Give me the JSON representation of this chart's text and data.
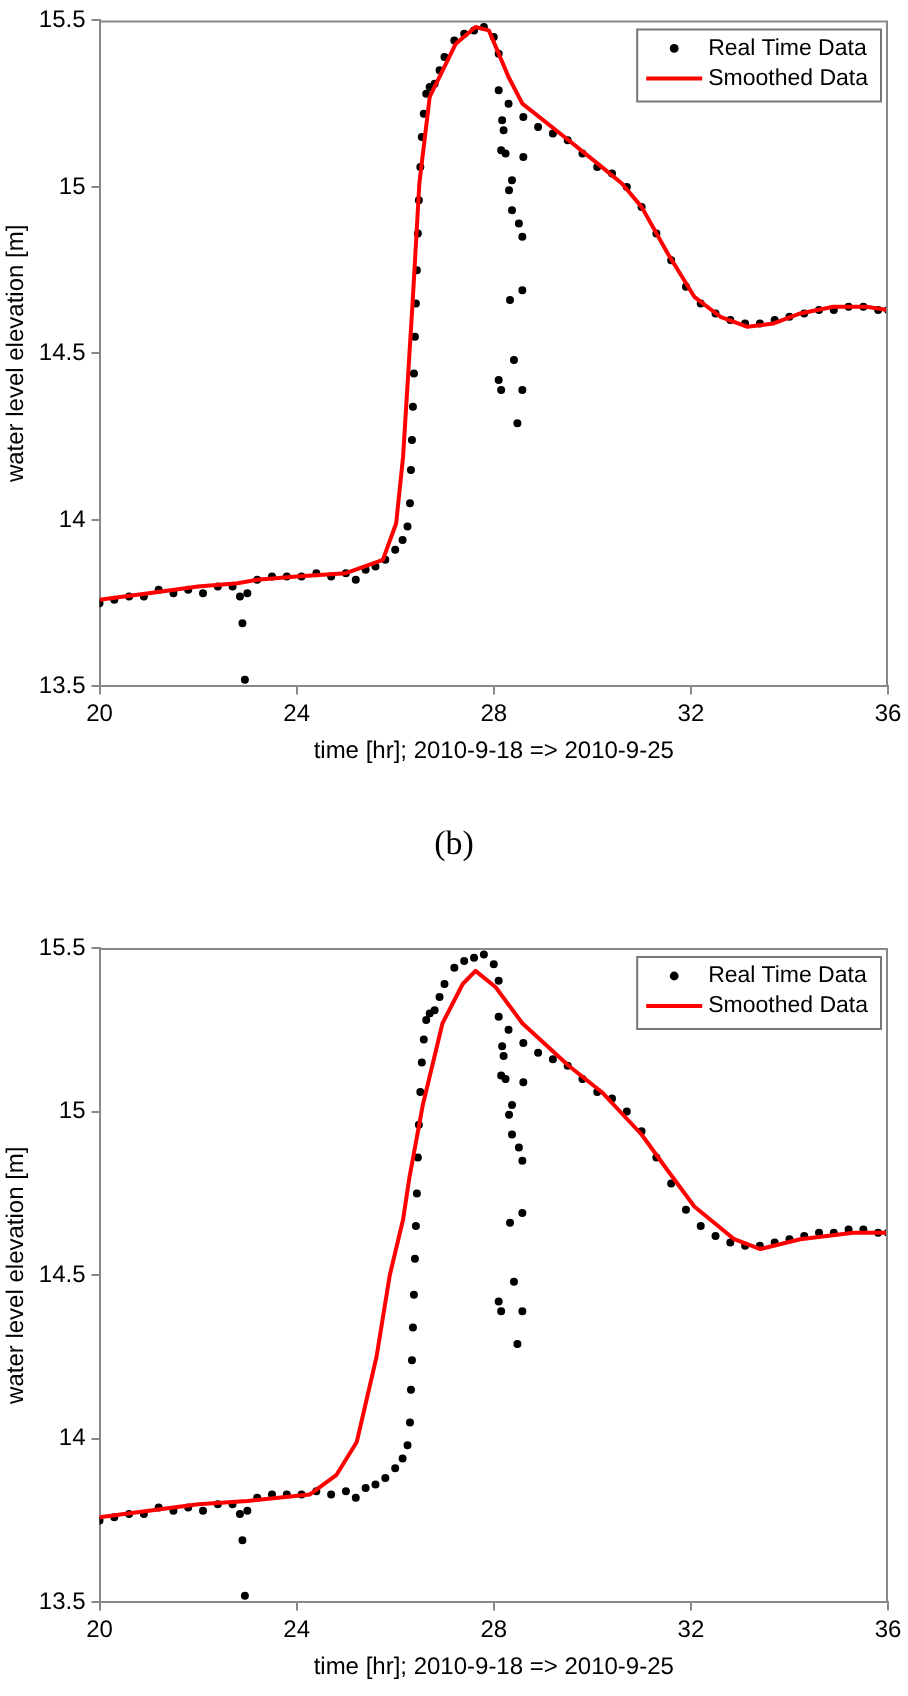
{
  "chart_data": [
    {
      "type": "scatter",
      "xlabel": "time [hr]; 2010-9-18 => 2010-9-25",
      "ylabel": "water level elevation [m]",
      "annotations": [
        "(b)"
      ],
      "xlim": [
        20,
        36
      ],
      "xticks": [
        20,
        24,
        28,
        32,
        36
      ],
      "ylim": [
        13.5,
        15.5
      ],
      "yticks": [
        13.5,
        14,
        14.5,
        15,
        15.5
      ],
      "grid": false,
      "legend": "top right",
      "series": [
        {
          "name": "Real Time Data",
          "type": "scatter",
          "marker": "circle",
          "color": "#000000",
          "x": [
            20.0,
            20.3,
            20.6,
            20.9,
            21.2,
            21.5,
            21.8,
            22.1,
            22.4,
            22.7,
            22.85,
            22.9,
            22.95,
            23.0,
            23.2,
            23.5,
            23.8,
            24.1,
            24.4,
            24.7,
            25.0,
            25.2,
            25.4,
            25.6,
            25.8,
            26.0,
            26.15,
            26.25,
            26.3,
            26.32,
            26.34,
            26.36,
            26.38,
            26.4,
            26.42,
            26.44,
            26.46,
            26.48,
            26.51,
            26.54,
            26.58,
            26.63,
            26.7,
            26.8,
            26.9,
            27.0,
            27.2,
            27.4,
            27.6,
            27.8,
            28.0,
            28.1,
            28.1,
            28.17,
            28.2,
            28.15,
            28.24,
            28.37,
            28.31,
            28.37,
            28.51,
            28.58,
            28.6,
            28.33,
            28.58,
            28.41,
            28.1,
            28.15,
            28.58,
            28.48,
            28.3,
            28.6,
            28.9,
            29.2,
            29.5,
            29.8,
            30.1,
            30.4,
            30.7,
            31.0,
            31.3,
            31.6,
            31.9,
            32.2,
            32.5,
            32.8,
            33.1,
            33.4,
            33.7,
            34.0,
            34.3,
            34.6,
            34.9,
            35.2,
            35.5,
            35.8,
            36.0
          ],
          "values": [
            13.75,
            13.76,
            13.77,
            13.77,
            13.79,
            13.78,
            13.79,
            13.78,
            13.8,
            13.8,
            13.77,
            13.69,
            13.52,
            13.78,
            13.82,
            13.83,
            13.83,
            13.83,
            13.84,
            13.83,
            13.84,
            13.82,
            13.85,
            13.86,
            13.88,
            13.91,
            13.94,
            13.98,
            14.05,
            14.15,
            14.24,
            14.34,
            14.44,
            14.55,
            14.65,
            14.75,
            14.86,
            14.96,
            15.06,
            15.15,
            15.22,
            15.28,
            15.3,
            15.31,
            15.35,
            15.39,
            15.44,
            15.46,
            15.47,
            15.48,
            15.45,
            15.4,
            15.29,
            15.2,
            15.17,
            15.11,
            15.1,
            15.02,
            14.99,
            14.93,
            14.89,
            14.85,
            15.09,
            14.66,
            14.69,
            14.48,
            14.42,
            14.39,
            14.39,
            14.29,
            15.25,
            15.21,
            15.18,
            15.16,
            15.14,
            15.1,
            15.06,
            15.04,
            15.0,
            14.94,
            14.86,
            14.78,
            14.7,
            14.65,
            14.62,
            14.6,
            14.59,
            14.59,
            14.6,
            14.61,
            14.62,
            14.63,
            14.63,
            14.64,
            14.64,
            14.63,
            14.63
          ]
        },
        {
          "name": "Smoothed Data",
          "type": "line",
          "marker": "none",
          "line_style": "solid",
          "color": "#ff0000",
          "x": [
            20,
            21,
            22,
            22.8,
            23.2,
            24,
            25,
            25.75,
            26.02,
            26.16,
            26.36,
            26.49,
            26.7,
            27.23,
            27.63,
            27.9,
            28.3,
            28.58,
            29.52,
            30.19,
            30.6,
            31.0,
            31.53,
            32.07,
            32.6,
            33.15,
            33.68,
            34.22,
            34.89,
            35.56,
            36
          ],
          "values": [
            13.76,
            13.78,
            13.8,
            13.81,
            13.82,
            13.83,
            13.84,
            13.88,
            13.99,
            14.19,
            14.67,
            15.01,
            15.27,
            15.43,
            15.48,
            15.47,
            15.33,
            15.25,
            15.14,
            15.06,
            15.01,
            14.94,
            14.8,
            14.67,
            14.61,
            14.58,
            14.59,
            14.62,
            14.64,
            14.64,
            14.63
          ]
        }
      ]
    },
    {
      "type": "scatter",
      "xlabel": "time [hr]; 2010-9-18 => 2010-9-25",
      "ylabel": "water level elevation [m]",
      "xlim": [
        20,
        36
      ],
      "xticks": [
        20,
        24,
        28,
        32,
        36
      ],
      "ylim": [
        13.5,
        15.5
      ],
      "yticks": [
        13.5,
        14,
        14.5,
        15,
        15.5
      ],
      "grid": false,
      "legend": "top right",
      "series": [
        {
          "name": "Real Time Data",
          "type": "scatter",
          "marker": "circle",
          "color": "#000000",
          "x": [
            20.0,
            20.3,
            20.6,
            20.9,
            21.2,
            21.5,
            21.8,
            22.1,
            22.4,
            22.7,
            22.85,
            22.9,
            22.95,
            23.0,
            23.2,
            23.5,
            23.8,
            24.1,
            24.4,
            24.7,
            25.0,
            25.2,
            25.4,
            25.6,
            25.8,
            26.0,
            26.15,
            26.25,
            26.3,
            26.32,
            26.34,
            26.36,
            26.38,
            26.4,
            26.42,
            26.44,
            26.46,
            26.48,
            26.51,
            26.54,
            26.58,
            26.63,
            26.7,
            26.8,
            26.9,
            27.0,
            27.2,
            27.4,
            27.6,
            27.8,
            28.0,
            28.1,
            28.1,
            28.17,
            28.2,
            28.15,
            28.24,
            28.37,
            28.31,
            28.37,
            28.51,
            28.58,
            28.6,
            28.33,
            28.58,
            28.41,
            28.1,
            28.15,
            28.58,
            28.48,
            28.3,
            28.6,
            28.9,
            29.2,
            29.5,
            29.8,
            30.1,
            30.4,
            30.7,
            31.0,
            31.3,
            31.6,
            31.9,
            32.2,
            32.5,
            32.8,
            33.1,
            33.4,
            33.7,
            34.0,
            34.3,
            34.6,
            34.9,
            35.2,
            35.5,
            35.8,
            36.0
          ],
          "values": [
            13.75,
            13.76,
            13.77,
            13.77,
            13.79,
            13.78,
            13.79,
            13.78,
            13.8,
            13.8,
            13.77,
            13.69,
            13.52,
            13.78,
            13.82,
            13.83,
            13.83,
            13.83,
            13.84,
            13.83,
            13.84,
            13.82,
            13.85,
            13.86,
            13.88,
            13.91,
            13.94,
            13.98,
            14.05,
            14.15,
            14.24,
            14.34,
            14.44,
            14.55,
            14.65,
            14.75,
            14.86,
            14.96,
            15.06,
            15.15,
            15.22,
            15.28,
            15.3,
            15.31,
            15.35,
            15.39,
            15.44,
            15.46,
            15.47,
            15.48,
            15.45,
            15.4,
            15.29,
            15.2,
            15.17,
            15.11,
            15.1,
            15.02,
            14.99,
            14.93,
            14.89,
            14.85,
            15.09,
            14.66,
            14.69,
            14.48,
            14.42,
            14.39,
            14.39,
            14.29,
            15.25,
            15.21,
            15.18,
            15.16,
            15.14,
            15.1,
            15.06,
            15.04,
            15.0,
            14.94,
            14.86,
            14.78,
            14.7,
            14.65,
            14.62,
            14.6,
            14.59,
            14.59,
            14.6,
            14.61,
            14.62,
            14.63,
            14.63,
            14.64,
            14.64,
            14.63,
            14.63
          ]
        },
        {
          "name": "Smoothed Data",
          "type": "line",
          "marker": "none",
          "line_style": "solid",
          "color": "#ff0000",
          "x": [
            20,
            21,
            22,
            23,
            24.27,
            24.81,
            25.22,
            25.62,
            25.89,
            26.16,
            26.29,
            26.56,
            26.96,
            27.37,
            27.63,
            28.04,
            28.58,
            29.52,
            30.19,
            31.0,
            31.53,
            32.07,
            32.88,
            33.41,
            34.22,
            35.3,
            36
          ],
          "values": [
            13.76,
            13.78,
            13.8,
            13.81,
            13.83,
            13.89,
            13.99,
            14.25,
            14.5,
            14.67,
            14.8,
            15.02,
            15.27,
            15.39,
            15.43,
            15.38,
            15.27,
            15.14,
            15.06,
            14.93,
            14.82,
            14.71,
            14.61,
            14.58,
            14.61,
            14.63,
            14.63
          ]
        }
      ]
    }
  ]
}
